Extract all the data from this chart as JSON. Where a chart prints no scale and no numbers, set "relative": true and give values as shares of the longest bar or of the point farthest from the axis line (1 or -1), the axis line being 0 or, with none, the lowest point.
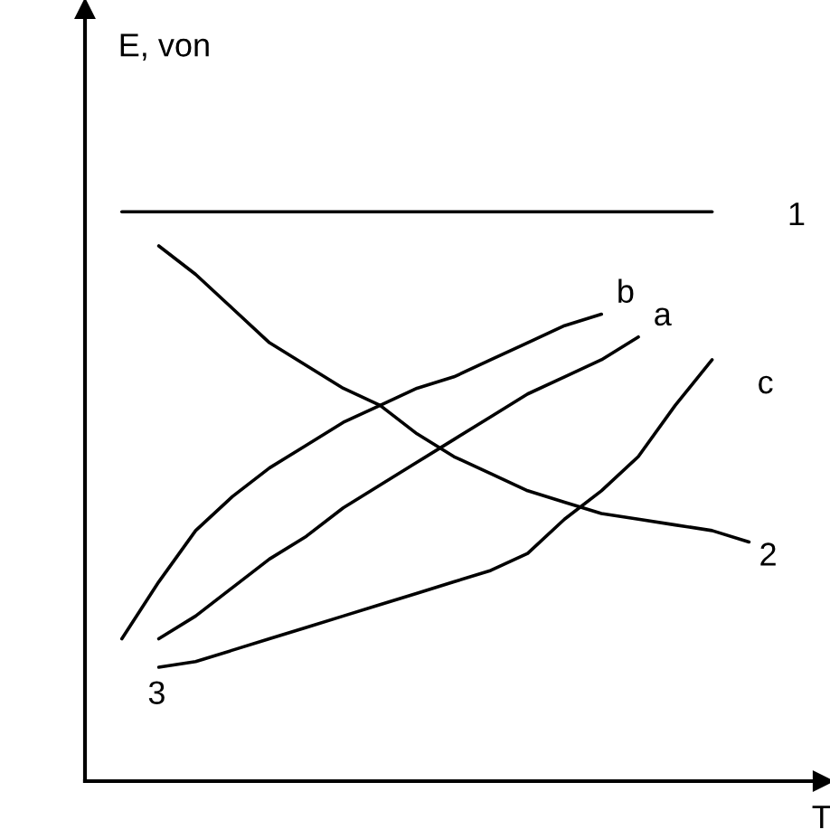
{
  "chart_data": {
    "type": "line",
    "relative": true,
    "ylabel": "E, von",
    "xlabel": "T",
    "grid": false,
    "legend": false,
    "marker": "none",
    "line_style": "solid",
    "categories": [
      null,
      null,
      null,
      null,
      null,
      null,
      null,
      null,
      null,
      null,
      null,
      null,
      null,
      null,
      null,
      null,
      null,
      null,
      null,
      null
    ],
    "series": [
      {
        "name": "1",
        "color": "#000000",
        "values": [
          null,
          1,
          1,
          1,
          1,
          1,
          1,
          1,
          1,
          1,
          1,
          1,
          1,
          1,
          1,
          1,
          1,
          1,
          null,
          null
        ]
      },
      {
        "name": "2",
        "color": "#000000",
        "values": [
          null,
          null,
          0.94,
          0.89,
          0.83,
          0.77,
          0.73,
          0.69,
          0.66,
          0.61,
          0.57,
          0.54,
          0.51,
          0.49,
          0.47,
          0.46,
          0.45,
          0.44,
          0.42,
          null
        ]
      },
      {
        "name": "b",
        "color": "#000000",
        "values": [
          null,
          0.25,
          0.35,
          0.44,
          0.5,
          0.55,
          0.59,
          0.63,
          0.66,
          0.69,
          0.71,
          0.74,
          0.77,
          0.8,
          0.82,
          null,
          null,
          null,
          null,
          null
        ]
      },
      {
        "name": "a",
        "color": "#000000",
        "values": [
          null,
          null,
          0.25,
          0.29,
          0.34,
          0.39,
          0.43,
          0.48,
          0.52,
          0.56,
          0.6,
          0.64,
          0.68,
          0.71,
          0.74,
          0.78,
          null,
          null,
          null,
          null
        ]
      },
      {
        "name": "c",
        "color": "#000000",
        "values": [
          null,
          null,
          0.2,
          0.21,
          0.23,
          0.25,
          0.27,
          0.29,
          0.31,
          0.33,
          0.35,
          0.37,
          0.4,
          0.46,
          0.51,
          0.57,
          0.66,
          0.74,
          null,
          null
        ]
      }
    ],
    "annotations": [
      "3"
    ]
  }
}
